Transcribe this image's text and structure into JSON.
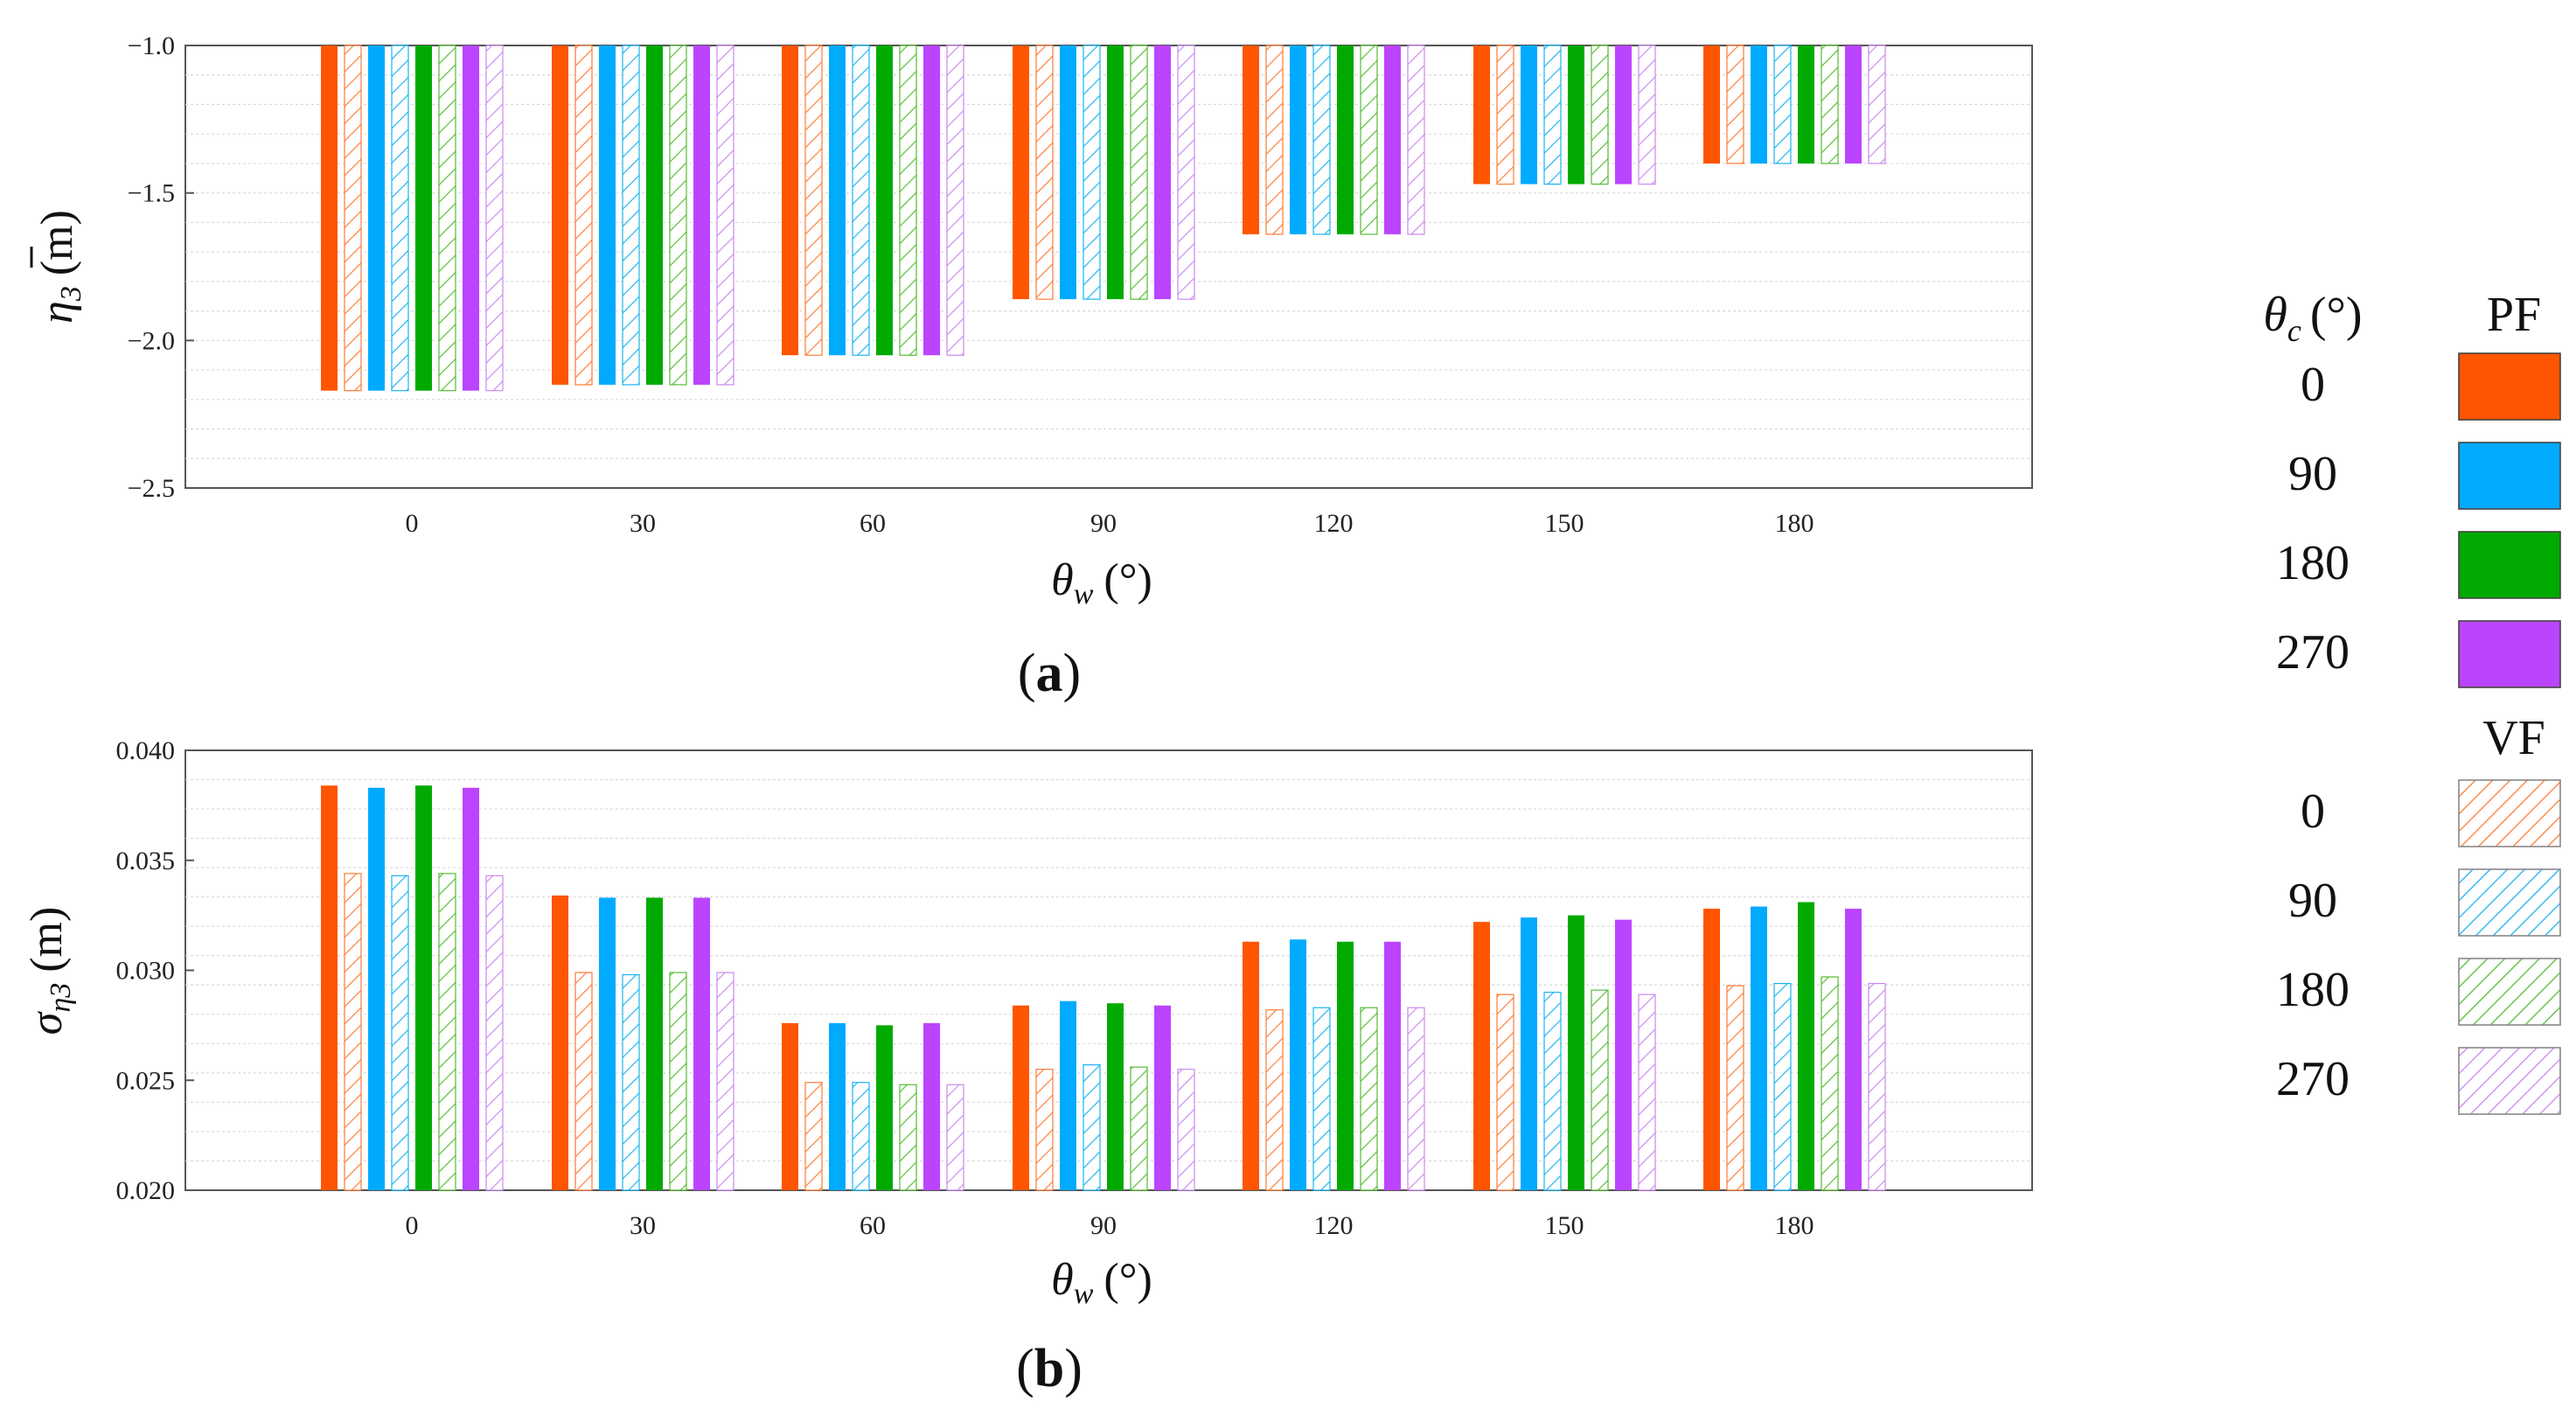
{
  "chart_data": [
    {
      "type": "bar",
      "panel_label": "a",
      "ylabel_symbol": "η",
      "ylabel_sub": "3",
      "ylabel_unit": "(m)",
      "xlabel_symbol": "θ",
      "xlabel_sub": "w",
      "xlabel_unit": "(°)",
      "categories": [
        "0",
        "30",
        "60",
        "90",
        "120",
        "150",
        "180"
      ],
      "yticks": [
        "−1.0",
        "−1.5",
        "−2.0",
        "−2.5"
      ],
      "ytick_values": [
        -1.0,
        -1.5,
        -2.0,
        -2.5
      ],
      "ylim": [
        -2.5,
        -1.0
      ],
      "baseline": -1.0,
      "grid": true,
      "series": [
        {
          "name": "PF 0",
          "values": [
            -2.17,
            -2.15,
            -2.05,
            -1.86,
            -1.64,
            -1.47,
            -1.4
          ]
        },
        {
          "name": "VF 0",
          "values": [
            -2.17,
            -2.15,
            -2.05,
            -1.86,
            -1.64,
            -1.47,
            -1.4
          ]
        },
        {
          "name": "PF 90",
          "values": [
            -2.17,
            -2.15,
            -2.05,
            -1.86,
            -1.64,
            -1.47,
            -1.4
          ]
        },
        {
          "name": "VF 90",
          "values": [
            -2.17,
            -2.15,
            -2.05,
            -1.86,
            -1.64,
            -1.47,
            -1.4
          ]
        },
        {
          "name": "PF 180",
          "values": [
            -2.17,
            -2.15,
            -2.05,
            -1.86,
            -1.64,
            -1.47,
            -1.4
          ]
        },
        {
          "name": "VF 180",
          "values": [
            -2.17,
            -2.15,
            -2.05,
            -1.86,
            -1.64,
            -1.47,
            -1.4
          ]
        },
        {
          "name": "PF 270",
          "values": [
            -2.17,
            -2.15,
            -2.05,
            -1.86,
            -1.64,
            -1.47,
            -1.4
          ]
        },
        {
          "name": "VF 270",
          "values": [
            -2.17,
            -2.15,
            -2.05,
            -1.86,
            -1.64,
            -1.47,
            -1.4
          ]
        }
      ]
    },
    {
      "type": "bar",
      "panel_label": "b",
      "ylabel_symbol": "σ",
      "ylabel_sub": "η3",
      "ylabel_unit": "(m)",
      "xlabel_symbol": "θ",
      "xlabel_sub": "w",
      "xlabel_unit": "(°)",
      "categories": [
        "0",
        "30",
        "60",
        "90",
        "120",
        "150",
        "180"
      ],
      "yticks": [
        "0.040",
        "0.035",
        "0.030",
        "0.025",
        "0.020"
      ],
      "ytick_values": [
        0.04,
        0.035,
        0.03,
        0.025,
        0.02
      ],
      "ylim": [
        0.02,
        0.04
      ],
      "baseline": 0.02,
      "grid": true,
      "series": [
        {
          "name": "PF 0",
          "values": [
            0.0384,
            0.0334,
            0.0276,
            0.0284,
            0.0313,
            0.0322,
            0.0328
          ]
        },
        {
          "name": "VF 0",
          "values": [
            0.0344,
            0.0299,
            0.0249,
            0.0255,
            0.0282,
            0.0289,
            0.0293
          ]
        },
        {
          "name": "PF 90",
          "values": [
            0.0383,
            0.0333,
            0.0276,
            0.0286,
            0.0314,
            0.0324,
            0.0329
          ]
        },
        {
          "name": "VF 90",
          "values": [
            0.0343,
            0.0298,
            0.0249,
            0.0257,
            0.0283,
            0.029,
            0.0294
          ]
        },
        {
          "name": "PF 180",
          "values": [
            0.0384,
            0.0333,
            0.0275,
            0.0285,
            0.0313,
            0.0325,
            0.0331
          ]
        },
        {
          "name": "VF 180",
          "values": [
            0.0344,
            0.0299,
            0.0248,
            0.0256,
            0.0283,
            0.0291,
            0.0297
          ]
        },
        {
          "name": "PF 270",
          "values": [
            0.0383,
            0.0333,
            0.0276,
            0.0284,
            0.0313,
            0.0323,
            0.0328
          ]
        },
        {
          "name": "VF 270",
          "values": [
            0.0343,
            0.0299,
            0.0248,
            0.0255,
            0.0283,
            0.0289,
            0.0294
          ]
        }
      ]
    }
  ],
  "legend": {
    "title_symbol": "θ",
    "title_sub": "c",
    "title_unit": "(°)",
    "pf_label": "PF",
    "vf_label": "VF",
    "pf_items": [
      {
        "label": "0",
        "color": "#FF5500"
      },
      {
        "label": "90",
        "color": "#00AAFF"
      },
      {
        "label": "180",
        "color": "#00AA00"
      },
      {
        "label": "270",
        "color": "#BB44FF"
      }
    ],
    "vf_items": [
      {
        "label": "0",
        "color": "#FF7A33"
      },
      {
        "label": "90",
        "color": "#19B3F0"
      },
      {
        "label": "180",
        "color": "#55BB33"
      },
      {
        "label": "270",
        "color": "#CC88EE"
      }
    ]
  },
  "colors": {
    "pf": [
      "#FF5500",
      "#00AAFF",
      "#00AA00",
      "#BB44FF"
    ],
    "vf": [
      "#FF7A33",
      "#19B3F0",
      "#55BB33",
      "#CC88EE"
    ]
  }
}
